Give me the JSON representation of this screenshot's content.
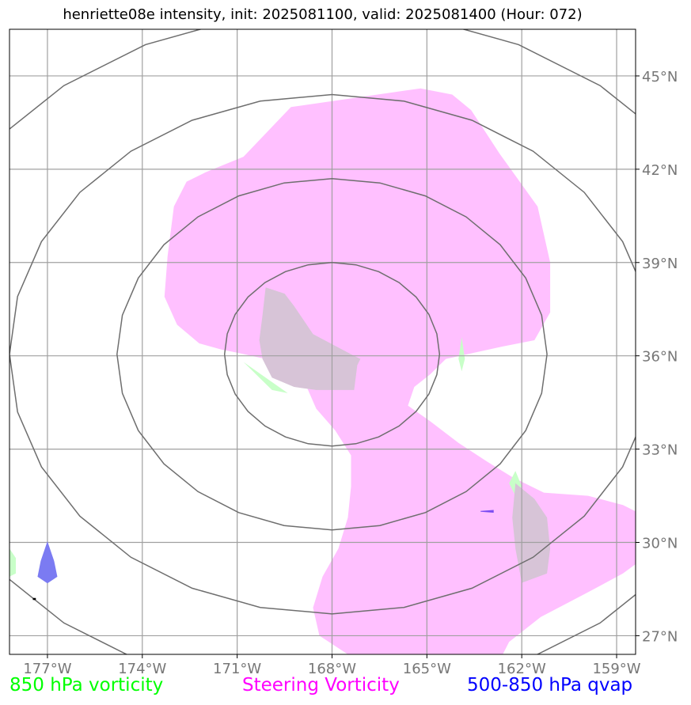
{
  "title": "henriette08e intensity, init: 2025081100, valid: 2025081400 (Hour: 072)",
  "legend": [
    {
      "label": "850 hPa vorticity",
      "color": "#00ff00"
    },
    {
      "label": "Steering Vorticity",
      "color": "#ff00ff"
    },
    {
      "label": "500-850 hPa qvap",
      "color": "#0000ff"
    }
  ],
  "chart_data": {
    "type": "map",
    "title": "henriette08e intensity, init: 2025081100, valid: 2025081400 (Hour: 072)",
    "xlim": [
      -178.2,
      -158.4
    ],
    "ylim": [
      26.4,
      46.5
    ],
    "x_ticks": [
      {
        "value": -177,
        "label": "177°W"
      },
      {
        "value": -174,
        "label": "174°W"
      },
      {
        "value": -171,
        "label": "171°W"
      },
      {
        "value": -168,
        "label": "168°W"
      },
      {
        "value": -165,
        "label": "165°W"
      },
      {
        "value": -162,
        "label": "162°W"
      },
      {
        "value": -159,
        "label": "159°W"
      }
    ],
    "y_ticks": [
      {
        "value": 27,
        "label": "27°N"
      },
      {
        "value": 30,
        "label": "30°N"
      },
      {
        "value": 33,
        "label": "33°N"
      },
      {
        "value": 36,
        "label": "36°N"
      },
      {
        "value": 39,
        "label": "39°N"
      },
      {
        "value": 42,
        "label": "42°N"
      },
      {
        "value": 45,
        "label": "45°N"
      }
    ],
    "grid": true,
    "range_rings": {
      "center": [
        -168.0,
        36.05
      ],
      "rings": [
        {
          "rx": 3.4,
          "ry": 2.95
        },
        {
          "rx": 6.8,
          "ry": 5.65
        },
        {
          "rx": 10.2,
          "ry": 8.35
        },
        {
          "rx": 13.6,
          "ry": 11.05
        }
      ]
    },
    "fields": [
      {
        "name": "Steering Vorticity",
        "color": "#ffc0ff",
        "polygons": [
          [
            [
              -169.3,
              44.0
            ],
            [
              -165.2,
              44.6
            ],
            [
              -164.2,
              44.4
            ],
            [
              -163.6,
              43.9
            ],
            [
              -162.7,
              42.5
            ],
            [
              -161.5,
              40.8
            ],
            [
              -161.1,
              39.0
            ],
            [
              -161.1,
              37.4
            ],
            [
              -161.6,
              36.5
            ],
            [
              -162.6,
              36.3
            ],
            [
              -164.4,
              35.9
            ],
            [
              -164.9,
              35.4
            ],
            [
              -165.4,
              35.0
            ],
            [
              -165.6,
              34.4
            ],
            [
              -164.9,
              33.9
            ],
            [
              -164.0,
              33.2
            ],
            [
              -163.1,
              32.6
            ],
            [
              -162.3,
              32.1
            ],
            [
              -161.3,
              31.6
            ],
            [
              -159.9,
              31.5
            ],
            [
              -158.8,
              31.2
            ],
            [
              -158.4,
              31.0
            ],
            [
              -158.4,
              29.3
            ],
            [
              -158.8,
              29.0
            ],
            [
              -159.9,
              28.4
            ],
            [
              -161.4,
              27.6
            ],
            [
              -162.4,
              26.8
            ],
            [
              -162.6,
              26.4
            ],
            [
              -167.5,
              26.4
            ],
            [
              -168.4,
              27.0
            ],
            [
              -168.6,
              27.9
            ],
            [
              -168.3,
              28.9
            ],
            [
              -167.8,
              29.8
            ],
            [
              -167.5,
              30.8
            ],
            [
              -167.4,
              31.8
            ],
            [
              -167.4,
              32.8
            ],
            [
              -167.9,
              33.6
            ],
            [
              -168.5,
              34.3
            ],
            [
              -168.8,
              35.0
            ],
            [
              -169.2,
              35.6
            ],
            [
              -170.1,
              35.9
            ],
            [
              -171.0,
              36.1
            ],
            [
              -171.5,
              36.2
            ],
            [
              -172.2,
              36.4
            ],
            [
              -172.9,
              37.0
            ],
            [
              -173.3,
              37.9
            ],
            [
              -173.2,
              39.2
            ],
            [
              -173.0,
              40.8
            ],
            [
              -172.6,
              41.6
            ],
            [
              -172.0,
              41.9
            ],
            [
              -170.8,
              42.4
            ],
            [
              -169.3,
              44.0
            ]
          ]
        ]
      },
      {
        "name": "850 hPa vorticity",
        "color": "#c8ffc8",
        "polygons": [
          [
            [
              -169.9,
              34.9
            ],
            [
              -169.4,
              34.8
            ],
            [
              -170.1,
              35.3
            ],
            [
              -170.8,
              35.8
            ],
            [
              -170.4,
              35.4
            ],
            [
              -169.9,
              34.9
            ]
          ],
          [
            [
              -163.9,
              36.6
            ],
            [
              -163.8,
              35.9
            ],
            [
              -163.9,
              35.5
            ],
            [
              -164.0,
              35.9
            ],
            [
              -163.9,
              36.6
            ]
          ],
          [
            [
              -162.2,
              32.3
            ],
            [
              -162.0,
              31.8
            ],
            [
              -162.2,
              31.5
            ],
            [
              -162.4,
              31.9
            ],
            [
              -162.2,
              32.3
            ]
          ],
          [
            [
              -178.2,
              29.8
            ],
            [
              -178.0,
              29.5
            ],
            [
              -178.0,
              29.0
            ],
            [
              -178.2,
              28.9
            ],
            [
              -178.2,
              29.8
            ]
          ]
        ]
      },
      {
        "name": "overlap",
        "color": "#d7c4d7",
        "polygons": [
          [
            [
              -170.1,
              38.2
            ],
            [
              -169.5,
              38.0
            ],
            [
              -169.2,
              37.6
            ],
            [
              -168.6,
              36.7
            ],
            [
              -167.3,
              36.0
            ],
            [
              -167.1,
              35.9
            ],
            [
              -167.2,
              35.7
            ],
            [
              -167.3,
              34.9
            ],
            [
              -168.5,
              34.9
            ],
            [
              -169.2,
              35.0
            ],
            [
              -169.9,
              35.3
            ],
            [
              -170.2,
              35.9
            ],
            [
              -170.3,
              36.5
            ],
            [
              -170.2,
              37.3
            ],
            [
              -170.1,
              38.2
            ]
          ],
          [
            [
              -162.2,
              31.9
            ],
            [
              -161.6,
              31.4
            ],
            [
              -161.2,
              30.8
            ],
            [
              -161.1,
              29.8
            ],
            [
              -161.2,
              29.0
            ],
            [
              -162.0,
              28.7
            ],
            [
              -162.2,
              29.8
            ],
            [
              -162.3,
              30.8
            ],
            [
              -162.2,
              31.9
            ]
          ]
        ]
      }
    ],
    "markers": [
      {
        "name": "qvap-west-patch",
        "color": "#7b7bf2",
        "points": [
          [
            -177.0,
            30.0
          ],
          [
            -176.8,
            29.4
          ],
          [
            -176.7,
            28.9
          ],
          [
            -177.0,
            28.7
          ],
          [
            -177.3,
            28.9
          ],
          [
            -177.2,
            29.4
          ],
          [
            -177.0,
            30.0
          ]
        ]
      },
      {
        "name": "qvap-east-streak",
        "color": "#7b4cf2",
        "points": [
          [
            -163.3,
            31.0
          ],
          [
            -162.9,
            31.03
          ],
          [
            -162.9,
            30.97
          ],
          [
            -163.3,
            31.0
          ]
        ]
      },
      {
        "name": "black-dot",
        "color": "#000000",
        "points": [
          [
            -177.45,
            28.2
          ],
          [
            -177.38,
            28.2
          ],
          [
            -177.38,
            28.16
          ],
          [
            -177.45,
            28.16
          ]
        ]
      }
    ]
  }
}
